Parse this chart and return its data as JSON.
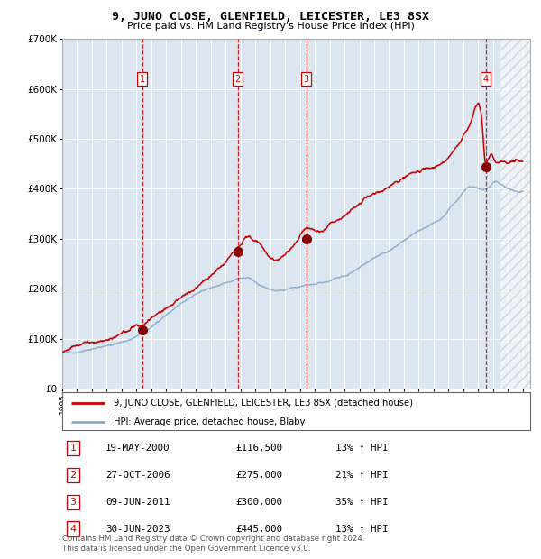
{
  "title": "9, JUNO CLOSE, GLENFIELD, LEICESTER, LE3 8SX",
  "subtitle": "Price paid vs. HM Land Registry's House Price Index (HPI)",
  "footer": "Contains HM Land Registry data © Crown copyright and database right 2024.\nThis data is licensed under the Open Government Licence v3.0.",
  "legend_line1": "9, JUNO CLOSE, GLENFIELD, LEICESTER, LE3 8SX (detached house)",
  "legend_line2": "HPI: Average price, detached house, Blaby",
  "transactions": [
    {
      "num": 1,
      "date": "19-MAY-2000",
      "price": 116500,
      "pct": "13%",
      "dir": "↑",
      "year_x": 2000.38
    },
    {
      "num": 2,
      "date": "27-OCT-2006",
      "price": 275000,
      "pct": "21%",
      "dir": "↑",
      "year_x": 2006.82
    },
    {
      "num": 3,
      "date": "09-JUN-2011",
      "price": 300000,
      "pct": "35%",
      "dir": "↑",
      "year_x": 2011.44
    },
    {
      "num": 4,
      "date": "30-JUN-2023",
      "price": 445000,
      "pct": "13%",
      "dir": "↑",
      "year_x": 2023.5
    }
  ],
  "ylim": [
    0,
    700000
  ],
  "xlim": [
    1995.0,
    2026.5
  ],
  "yticks": [
    0,
    100000,
    200000,
    300000,
    400000,
    500000,
    600000,
    700000
  ],
  "ytick_labels": [
    "£0",
    "£100K",
    "£200K",
    "£300K",
    "£400K",
    "£500K",
    "£600K",
    "£700K"
  ],
  "xticks": [
    1995,
    1996,
    1997,
    1998,
    1999,
    2000,
    2001,
    2002,
    2003,
    2004,
    2005,
    2006,
    2007,
    2008,
    2009,
    2010,
    2011,
    2012,
    2013,
    2014,
    2015,
    2016,
    2017,
    2018,
    2019,
    2020,
    2021,
    2022,
    2023,
    2024,
    2025,
    2026
  ],
  "background_color": "#dce6f1",
  "hatch_start": 2024.5,
  "red_line_color": "#cc0000",
  "blue_line_color": "#88aacc",
  "marker_color": "#880000",
  "vline_color": "#cc0000",
  "box_color": "#cc0000",
  "white_grid": "#ffffff",
  "hpi_keypoints": [
    [
      1995.0,
      72000
    ],
    [
      1997.0,
      82000
    ],
    [
      1999.0,
      98000
    ],
    [
      2000.5,
      118000
    ],
    [
      2002.0,
      155000
    ],
    [
      2003.5,
      185000
    ],
    [
      2004.5,
      200000
    ],
    [
      2006.0,
      215000
    ],
    [
      2007.5,
      230000
    ],
    [
      2008.5,
      215000
    ],
    [
      2009.5,
      210000
    ],
    [
      2011.0,
      218000
    ],
    [
      2012.0,
      220000
    ],
    [
      2013.0,
      225000
    ],
    [
      2014.5,
      240000
    ],
    [
      2016.0,
      270000
    ],
    [
      2017.5,
      295000
    ],
    [
      2019.0,
      320000
    ],
    [
      2020.5,
      340000
    ],
    [
      2021.5,
      375000
    ],
    [
      2022.5,
      405000
    ],
    [
      2023.5,
      400000
    ],
    [
      2024.2,
      415000
    ],
    [
      2025.0,
      400000
    ],
    [
      2026.0,
      395000
    ]
  ],
  "red_keypoints": [
    [
      1995.0,
      72000
    ],
    [
      1996.5,
      82000
    ],
    [
      1998.0,
      90000
    ],
    [
      1999.5,
      105000
    ],
    [
      2000.38,
      116500
    ],
    [
      2001.5,
      140000
    ],
    [
      2002.5,
      165000
    ],
    [
      2003.5,
      190000
    ],
    [
      2004.5,
      210000
    ],
    [
      2005.5,
      235000
    ],
    [
      2006.82,
      275000
    ],
    [
      2007.5,
      295000
    ],
    [
      2008.0,
      285000
    ],
    [
      2008.5,
      270000
    ],
    [
      2009.0,
      250000
    ],
    [
      2009.5,
      245000
    ],
    [
      2010.0,
      255000
    ],
    [
      2010.5,
      265000
    ],
    [
      2011.44,
      300000
    ],
    [
      2012.0,
      295000
    ],
    [
      2012.5,
      295000
    ],
    [
      2013.0,
      310000
    ],
    [
      2013.5,
      320000
    ],
    [
      2014.0,
      330000
    ],
    [
      2014.5,
      340000
    ],
    [
      2015.0,
      350000
    ],
    [
      2015.5,
      360000
    ],
    [
      2016.0,
      368000
    ],
    [
      2016.5,
      375000
    ],
    [
      2017.0,
      385000
    ],
    [
      2017.5,
      395000
    ],
    [
      2018.0,
      405000
    ],
    [
      2018.5,
      415000
    ],
    [
      2019.0,
      420000
    ],
    [
      2019.5,
      425000
    ],
    [
      2020.0,
      428000
    ],
    [
      2020.5,
      435000
    ],
    [
      2021.0,
      450000
    ],
    [
      2021.5,
      470000
    ],
    [
      2022.0,
      495000
    ],
    [
      2022.5,
      525000
    ],
    [
      2022.8,
      555000
    ],
    [
      2023.0,
      565000
    ],
    [
      2023.2,
      545000
    ],
    [
      2023.5,
      445000
    ],
    [
      2023.7,
      455000
    ],
    [
      2023.9,
      465000
    ],
    [
      2024.1,
      455000
    ],
    [
      2024.3,
      450000
    ],
    [
      2024.5,
      455000
    ],
    [
      2025.0,
      455000
    ],
    [
      2026.0,
      455000
    ]
  ]
}
